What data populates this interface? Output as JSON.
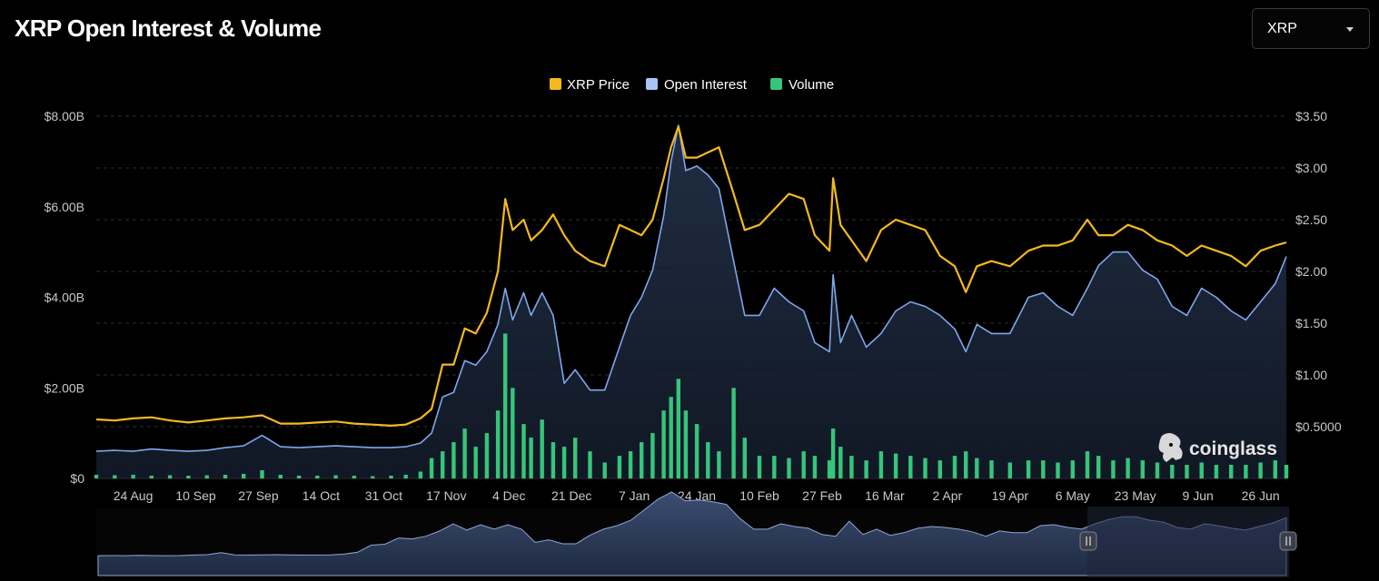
{
  "header": {
    "title": "XRP Open Interest & Volume"
  },
  "selector": {
    "value": "XRP",
    "icon": "chevron-down-icon"
  },
  "brand": {
    "name": "coinglass",
    "icon": "coinglass-logo-icon"
  },
  "colors": {
    "price": "#f4b91e",
    "open_interest": "#7ea7ec",
    "volume": "#36c57a"
  },
  "chart_data": {
    "type": "line",
    "legend": [
      "XRP Price",
      "Open Interest",
      "Volume"
    ],
    "legend_position": "top-center",
    "grid": true,
    "x_ticks": [
      "24 Aug",
      "10 Sep",
      "27 Sep",
      "14 Oct",
      "31 Oct",
      "17 Nov",
      "4 Dec",
      "21 Dec",
      "7 Jan",
      "24 Jan",
      "10 Feb",
      "27 Feb",
      "16 Mar",
      "2 Apr",
      "19 Apr",
      "6 May",
      "23 May",
      "9 Jun",
      "26 Jun"
    ],
    "y_left_ticks": [
      "$0",
      "$2.00B",
      "$4.00B",
      "$6.00B",
      "$8.00B"
    ],
    "y_left_range": [
      0,
      8000000000
    ],
    "y_right_ticks": [
      "$0.5000",
      "$1.00",
      "$1.50",
      "$2.00",
      "$2.50",
      "$3.00",
      "$3.50"
    ],
    "y_right_range": [
      0,
      3.5
    ],
    "series": [
      {
        "name": "XRP Price",
        "axis": "right",
        "x": [
          "2024-08-14",
          "2024-08-19",
          "2024-08-24",
          "2024-08-29",
          "2024-09-03",
          "2024-09-08",
          "2024-09-13",
          "2024-09-18",
          "2024-09-23",
          "2024-09-28",
          "2024-10-03",
          "2024-10-08",
          "2024-10-13",
          "2024-10-18",
          "2024-10-23",
          "2024-10-28",
          "2024-11-02",
          "2024-11-06",
          "2024-11-10",
          "2024-11-13",
          "2024-11-16",
          "2024-11-19",
          "2024-11-22",
          "2024-11-25",
          "2024-11-28",
          "2024-12-01",
          "2024-12-03",
          "2024-12-05",
          "2024-12-08",
          "2024-12-10",
          "2024-12-13",
          "2024-12-16",
          "2024-12-19",
          "2024-12-22",
          "2024-12-26",
          "2024-12-30",
          "2025-01-03",
          "2025-01-06",
          "2025-01-09",
          "2025-01-12",
          "2025-01-15",
          "2025-01-17",
          "2025-01-19",
          "2025-01-21",
          "2025-01-24",
          "2025-01-27",
          "2025-01-30",
          "2025-02-03",
          "2025-02-06",
          "2025-02-10",
          "2025-02-14",
          "2025-02-18",
          "2025-02-22",
          "2025-02-25",
          "2025-03-01",
          "2025-03-02",
          "2025-03-04",
          "2025-03-07",
          "2025-03-11",
          "2025-03-15",
          "2025-03-19",
          "2025-03-23",
          "2025-03-27",
          "2025-03-31",
          "2025-04-04",
          "2025-04-07",
          "2025-04-10",
          "2025-04-14",
          "2025-04-19",
          "2025-04-24",
          "2025-04-28",
          "2025-05-02",
          "2025-05-06",
          "2025-05-10",
          "2025-05-13",
          "2025-05-17",
          "2025-05-21",
          "2025-05-25",
          "2025-05-29",
          "2025-06-02",
          "2025-06-06",
          "2025-06-10",
          "2025-06-14",
          "2025-06-18",
          "2025-06-22",
          "2025-06-26",
          "2025-06-30",
          "2025-07-03"
        ],
        "values": [
          0.57,
          0.56,
          0.58,
          0.59,
          0.56,
          0.54,
          0.56,
          0.58,
          0.59,
          0.61,
          0.53,
          0.53,
          0.54,
          0.55,
          0.53,
          0.52,
          0.51,
          0.52,
          0.58,
          0.67,
          1.1,
          1.1,
          1.45,
          1.4,
          1.6,
          2.0,
          2.7,
          2.4,
          2.5,
          2.3,
          2.4,
          2.55,
          2.35,
          2.2,
          2.1,
          2.05,
          2.45,
          2.4,
          2.35,
          2.5,
          2.9,
          3.2,
          3.4,
          3.1,
          3.1,
          3.15,
          3.2,
          2.75,
          2.4,
          2.45,
          2.6,
          2.75,
          2.7,
          2.35,
          2.2,
          2.9,
          2.45,
          2.3,
          2.1,
          2.4,
          2.5,
          2.45,
          2.4,
          2.15,
          2.05,
          1.8,
          2.05,
          2.1,
          2.05,
          2.2,
          2.25,
          2.25,
          2.3,
          2.5,
          2.35,
          2.35,
          2.45,
          2.4,
          2.3,
          2.25,
          2.15,
          2.25,
          2.2,
          2.15,
          2.05,
          2.2,
          2.25,
          2.28
        ]
      },
      {
        "name": "Open Interest",
        "axis": "left",
        "x": [
          "2024-08-14",
          "2024-08-19",
          "2024-08-24",
          "2024-08-29",
          "2024-09-03",
          "2024-09-08",
          "2024-09-13",
          "2024-09-18",
          "2024-09-23",
          "2024-09-28",
          "2024-10-03",
          "2024-10-08",
          "2024-10-13",
          "2024-10-18",
          "2024-10-23",
          "2024-10-28",
          "2024-11-02",
          "2024-11-06",
          "2024-11-10",
          "2024-11-13",
          "2024-11-16",
          "2024-11-19",
          "2024-11-22",
          "2024-11-25",
          "2024-11-28",
          "2024-12-01",
          "2024-12-03",
          "2024-12-05",
          "2024-12-08",
          "2024-12-10",
          "2024-12-13",
          "2024-12-16",
          "2024-12-19",
          "2024-12-22",
          "2024-12-26",
          "2024-12-30",
          "2025-01-03",
          "2025-01-06",
          "2025-01-09",
          "2025-01-12",
          "2025-01-15",
          "2025-01-17",
          "2025-01-19",
          "2025-01-21",
          "2025-01-24",
          "2025-01-27",
          "2025-01-30",
          "2025-02-03",
          "2025-02-06",
          "2025-02-10",
          "2025-02-14",
          "2025-02-18",
          "2025-02-22",
          "2025-02-25",
          "2025-03-01",
          "2025-03-02",
          "2025-03-04",
          "2025-03-07",
          "2025-03-11",
          "2025-03-15",
          "2025-03-19",
          "2025-03-23",
          "2025-03-27",
          "2025-03-31",
          "2025-04-04",
          "2025-04-07",
          "2025-04-10",
          "2025-04-14",
          "2025-04-19",
          "2025-04-24",
          "2025-04-28",
          "2025-05-02",
          "2025-05-06",
          "2025-05-10",
          "2025-05-13",
          "2025-05-17",
          "2025-05-21",
          "2025-05-25",
          "2025-05-29",
          "2025-06-02",
          "2025-06-06",
          "2025-06-10",
          "2025-06-14",
          "2025-06-18",
          "2025-06-22",
          "2025-06-26",
          "2025-06-30",
          "2025-07-03"
        ],
        "values": [
          0.6,
          0.62,
          0.6,
          0.65,
          0.62,
          0.6,
          0.62,
          0.68,
          0.72,
          0.95,
          0.7,
          0.68,
          0.7,
          0.72,
          0.7,
          0.68,
          0.68,
          0.7,
          0.78,
          1.0,
          1.8,
          1.9,
          2.6,
          2.5,
          2.8,
          3.4,
          4.2,
          3.5,
          4.1,
          3.6,
          4.1,
          3.6,
          2.1,
          2.4,
          1.95,
          1.95,
          2.9,
          3.6,
          4.0,
          4.6,
          5.8,
          7.0,
          7.8,
          6.8,
          6.9,
          6.7,
          6.4,
          4.8,
          3.6,
          3.6,
          4.2,
          3.9,
          3.7,
          3.0,
          2.8,
          4.5,
          3.0,
          3.6,
          2.9,
          3.2,
          3.7,
          3.9,
          3.8,
          3.6,
          3.3,
          2.8,
          3.4,
          3.2,
          3.2,
          4.0,
          4.1,
          3.8,
          3.6,
          4.2,
          4.7,
          5.0,
          5.0,
          4.6,
          4.4,
          3.8,
          3.6,
          4.2,
          4.0,
          3.7,
          3.5,
          3.9,
          4.3,
          4.9
        ]
      },
      {
        "name": "Volume",
        "axis": "left",
        "x": [
          "2024-08-14",
          "2024-08-19",
          "2024-08-24",
          "2024-08-29",
          "2024-09-03",
          "2024-09-08",
          "2024-09-13",
          "2024-09-18",
          "2024-09-23",
          "2024-09-28",
          "2024-10-03",
          "2024-10-08",
          "2024-10-13",
          "2024-10-18",
          "2024-10-23",
          "2024-10-28",
          "2024-11-02",
          "2024-11-06",
          "2024-11-10",
          "2024-11-13",
          "2024-11-16",
          "2024-11-19",
          "2024-11-22",
          "2024-11-25",
          "2024-11-28",
          "2024-12-01",
          "2024-12-03",
          "2024-12-05",
          "2024-12-08",
          "2024-12-10",
          "2024-12-13",
          "2024-12-16",
          "2024-12-19",
          "2024-12-22",
          "2024-12-26",
          "2024-12-30",
          "2025-01-03",
          "2025-01-06",
          "2025-01-09",
          "2025-01-12",
          "2025-01-15",
          "2025-01-17",
          "2025-01-19",
          "2025-01-21",
          "2025-01-24",
          "2025-01-27",
          "2025-01-30",
          "2025-02-03",
          "2025-02-06",
          "2025-02-10",
          "2025-02-14",
          "2025-02-18",
          "2025-02-22",
          "2025-02-25",
          "2025-03-01",
          "2025-03-02",
          "2025-03-04",
          "2025-03-07",
          "2025-03-11",
          "2025-03-15",
          "2025-03-19",
          "2025-03-23",
          "2025-03-27",
          "2025-03-31",
          "2025-04-04",
          "2025-04-07",
          "2025-04-10",
          "2025-04-14",
          "2025-04-19",
          "2025-04-24",
          "2025-04-28",
          "2025-05-02",
          "2025-05-06",
          "2025-05-10",
          "2025-05-13",
          "2025-05-17",
          "2025-05-21",
          "2025-05-25",
          "2025-05-29",
          "2025-06-02",
          "2025-06-06",
          "2025-06-10",
          "2025-06-14",
          "2025-06-18",
          "2025-06-22",
          "2025-06-26",
          "2025-06-30",
          "2025-07-03"
        ],
        "values": [
          0.08,
          0.07,
          0.08,
          0.06,
          0.07,
          0.06,
          0.07,
          0.08,
          0.1,
          0.18,
          0.08,
          0.06,
          0.06,
          0.07,
          0.06,
          0.05,
          0.06,
          0.08,
          0.15,
          0.45,
          0.6,
          0.8,
          1.1,
          0.7,
          1.0,
          1.5,
          3.2,
          2.0,
          1.2,
          0.9,
          1.3,
          0.8,
          0.7,
          0.9,
          0.6,
          0.35,
          0.5,
          0.6,
          0.8,
          1.0,
          1.5,
          1.8,
          2.2,
          1.5,
          1.2,
          0.8,
          0.6,
          2.0,
          0.9,
          0.5,
          0.5,
          0.45,
          0.6,
          0.5,
          0.4,
          1.1,
          0.7,
          0.5,
          0.4,
          0.6,
          0.55,
          0.5,
          0.45,
          0.4,
          0.5,
          0.6,
          0.45,
          0.4,
          0.35,
          0.4,
          0.4,
          0.35,
          0.4,
          0.6,
          0.5,
          0.4,
          0.45,
          0.4,
          0.35,
          0.3,
          0.3,
          0.35,
          0.3,
          0.3,
          0.3,
          0.35,
          0.4,
          0.3
        ]
      }
    ]
  }
}
